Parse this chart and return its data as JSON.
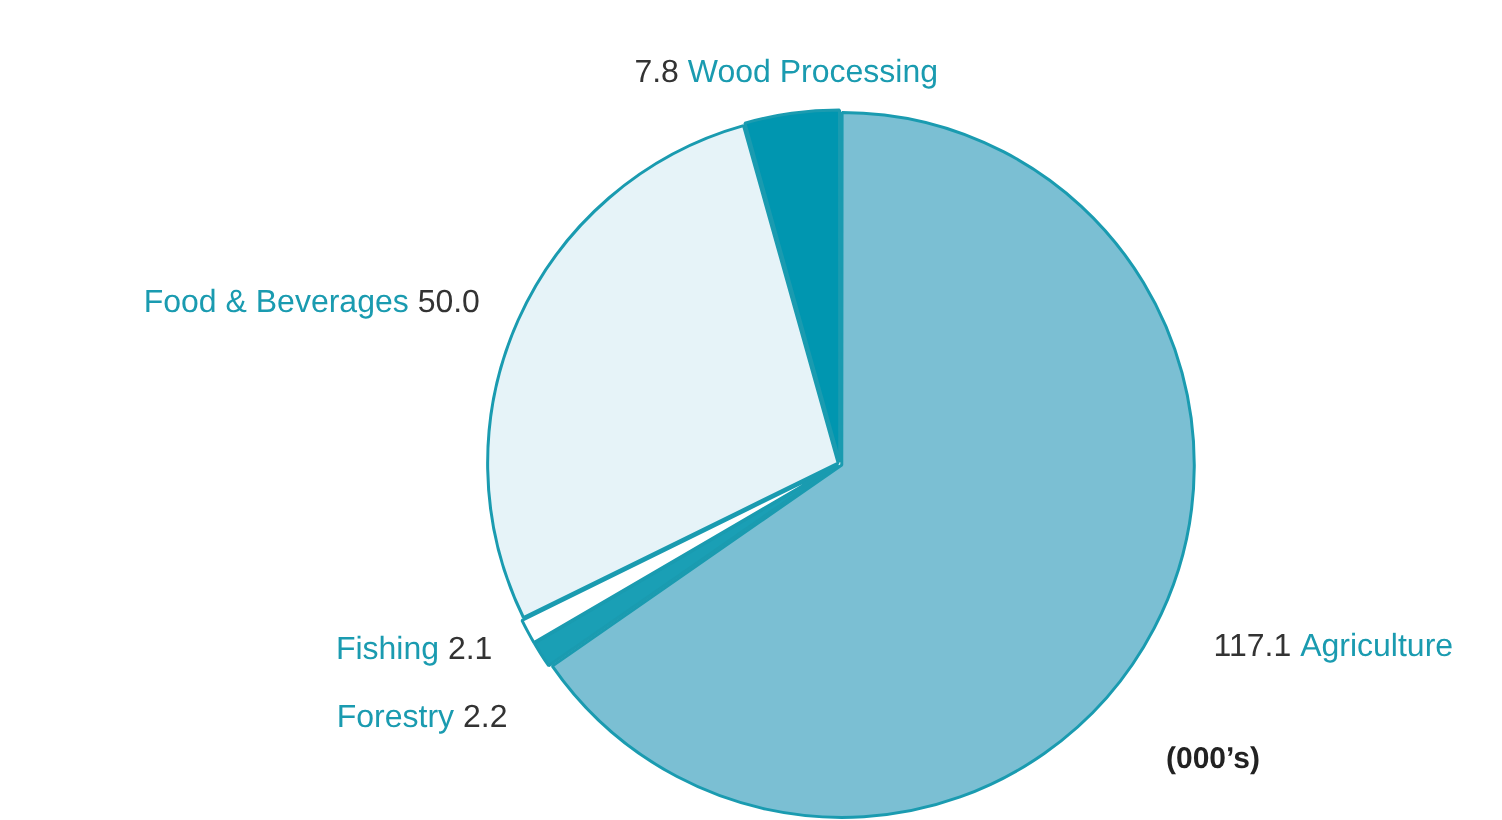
{
  "chart_data": {
    "type": "pie",
    "categories": [
      "Agriculture",
      "Forestry",
      "Fishing",
      "Food & Beverages",
      "Wood Processing"
    ],
    "values": [
      117.1,
      2.2,
      2.1,
      50.0,
      7.8
    ],
    "value_labels": [
      "117.1",
      "2.2",
      "2.1",
      "50.0",
      "7.8"
    ],
    "colors": [
      "#7bbfd3",
      "#1a9fb5",
      "#ffffff",
      "#e6f3f8",
      "#0096b0"
    ],
    "annotations": [
      "(000’s)"
    ],
    "legend": false
  }
}
